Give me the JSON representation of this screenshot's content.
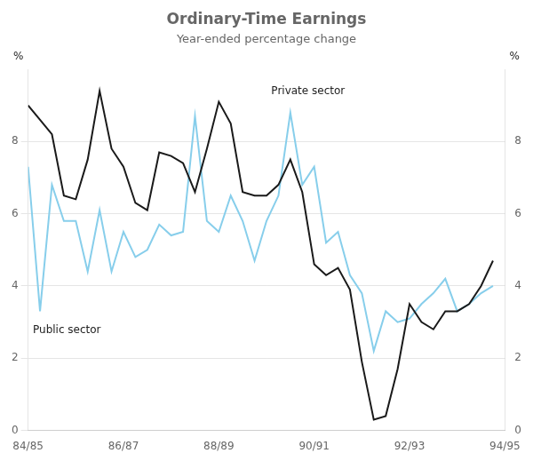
{
  "chart_data": {
    "type": "line",
    "title": "Ordinary-Time Earnings",
    "subtitle": "Year-ended percentage change",
    "ylabel": "%",
    "y2label": "%",
    "x": [
      0,
      0.5,
      1.0,
      1.5,
      2.0,
      2.5,
      3.0,
      3.5,
      4.0,
      4.5,
      5.0,
      5.5,
      6.0,
      6.5,
      7.0,
      7.5,
      8.0,
      8.5,
      9.0,
      9.5,
      10.0,
      10.5,
      11.0,
      11.5,
      12.0,
      12.5,
      13.0,
      13.5,
      14.0,
      14.5,
      15.0,
      15.5,
      16.0,
      16.5,
      17.0,
      17.5,
      18.0,
      18.5,
      19.0,
      19.5
    ],
    "series": [
      {
        "name": "Private sector",
        "color": "#1a1a1a",
        "values": [
          9.0,
          8.6,
          8.2,
          6.5,
          6.4,
          7.5,
          9.4,
          7.8,
          7.3,
          6.3,
          6.1,
          7.7,
          7.6,
          7.4,
          6.6,
          7.8,
          9.1,
          8.5,
          6.6,
          6.5,
          6.5,
          6.8,
          7.5,
          6.6,
          4.6,
          4.3,
          4.5,
          3.9,
          1.9,
          0.3,
          0.4,
          1.7,
          3.5,
          3.0,
          2.8,
          3.3,
          3.3,
          3.5,
          4.0,
          4.7
        ]
      },
      {
        "name": "Public sector",
        "color": "#87ceeb",
        "values": [
          7.3,
          3.3,
          6.8,
          5.8,
          5.8,
          4.4,
          6.1,
          4.4,
          5.5,
          4.8,
          5.0,
          5.7,
          5.4,
          5.5,
          8.7,
          5.8,
          5.5,
          6.5,
          5.8,
          4.7,
          5.8,
          6.5,
          8.8,
          6.8,
          7.3,
          5.2,
          5.5,
          4.3,
          3.8,
          2.2,
          3.3,
          3.0,
          3.1,
          3.5,
          3.8,
          4.2,
          3.3,
          3.5,
          3.8,
          4.0
        ]
      }
    ],
    "xlim": [
      0,
      20
    ],
    "xticks": [
      {
        "value": 0,
        "label": "84/85"
      },
      {
        "value": 4,
        "label": "86/87"
      },
      {
        "value": 8,
        "label": "88/89"
      },
      {
        "value": 12,
        "label": "90/91"
      },
      {
        "value": 16,
        "label": "92/93"
      },
      {
        "value": 20,
        "label": "94/95"
      }
    ],
    "ylim": [
      0,
      10
    ],
    "yticks": [
      0,
      2,
      4,
      6,
      8
    ],
    "y2lim": [
      0,
      10
    ],
    "y2ticks": [
      0,
      2,
      4,
      6,
      8
    ],
    "grid": "y",
    "annotations": [
      {
        "text": "Private sector",
        "x": 10.2,
        "y": 9.3
      },
      {
        "text": "Public sector",
        "x": 0.2,
        "y": 2.7
      }
    ]
  }
}
